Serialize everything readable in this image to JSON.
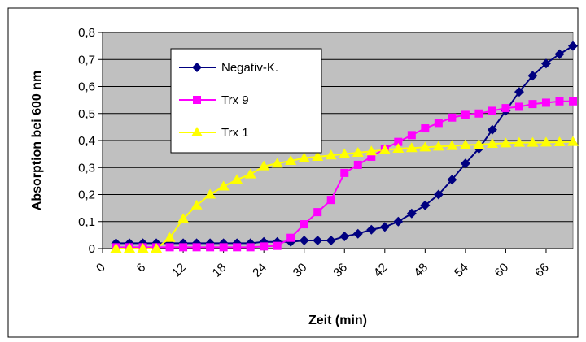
{
  "chart_data": {
    "type": "line",
    "title": "",
    "xlabel": "Zeit (min)",
    "ylabel": "Absorption bei 600 nm",
    "xlim": [
      0,
      70
    ],
    "ylim": [
      0,
      0.8
    ],
    "x_ticks": [
      0,
      6,
      12,
      18,
      24,
      30,
      36,
      42,
      48,
      54,
      60,
      66
    ],
    "y_ticks": [
      "0",
      "0,1",
      "0,2",
      "0,3",
      "0,4",
      "0,5",
      "0,6",
      "0,7",
      "0,8"
    ],
    "grid": true,
    "legend_position": "top-left-inside",
    "x": [
      2,
      4,
      6,
      8,
      10,
      12,
      14,
      16,
      18,
      20,
      22,
      24,
      26,
      28,
      30,
      32,
      34,
      36,
      38,
      40,
      42,
      44,
      46,
      48,
      50,
      52,
      54,
      56,
      58,
      60,
      62,
      64,
      66,
      68,
      70
    ],
    "series": [
      {
        "name": "Negativ-K.",
        "color": "#000080",
        "marker": "diamond",
        "values": [
          0.02,
          0.02,
          0.02,
          0.02,
          0.02,
          0.02,
          0.02,
          0.02,
          0.02,
          0.02,
          0.02,
          0.025,
          0.025,
          0.025,
          0.03,
          0.03,
          0.03,
          0.045,
          0.055,
          0.07,
          0.08,
          0.1,
          0.13,
          0.16,
          0.2,
          0.255,
          0.315,
          0.37,
          0.44,
          0.51,
          0.58,
          0.64,
          0.685,
          0.72,
          0.75
        ]
      },
      {
        "name": "Trx 9",
        "color": "#ff00ff",
        "marker": "square",
        "values": [
          0.005,
          0.005,
          0.005,
          0.005,
          0.005,
          0.005,
          0.005,
          0.005,
          0.005,
          0.005,
          0.005,
          0.008,
          0.01,
          0.04,
          0.09,
          0.135,
          0.18,
          0.28,
          0.31,
          0.34,
          0.37,
          0.395,
          0.42,
          0.445,
          0.465,
          0.485,
          0.495,
          0.5,
          0.51,
          0.52,
          0.525,
          0.535,
          0.54,
          0.545,
          0.545
        ]
      },
      {
        "name": "Trx 1",
        "color": "#ffff00",
        "marker": "triangle",
        "values": [
          0.0,
          0.0,
          0.0,
          0.0,
          0.04,
          0.11,
          0.16,
          0.2,
          0.23,
          0.255,
          0.275,
          0.305,
          0.315,
          0.325,
          0.335,
          0.34,
          0.345,
          0.35,
          0.355,
          0.36,
          0.365,
          0.37,
          0.372,
          0.375,
          0.378,
          0.38,
          0.383,
          0.385,
          0.388,
          0.39,
          0.392,
          0.392,
          0.393,
          0.394,
          0.395
        ]
      }
    ]
  }
}
